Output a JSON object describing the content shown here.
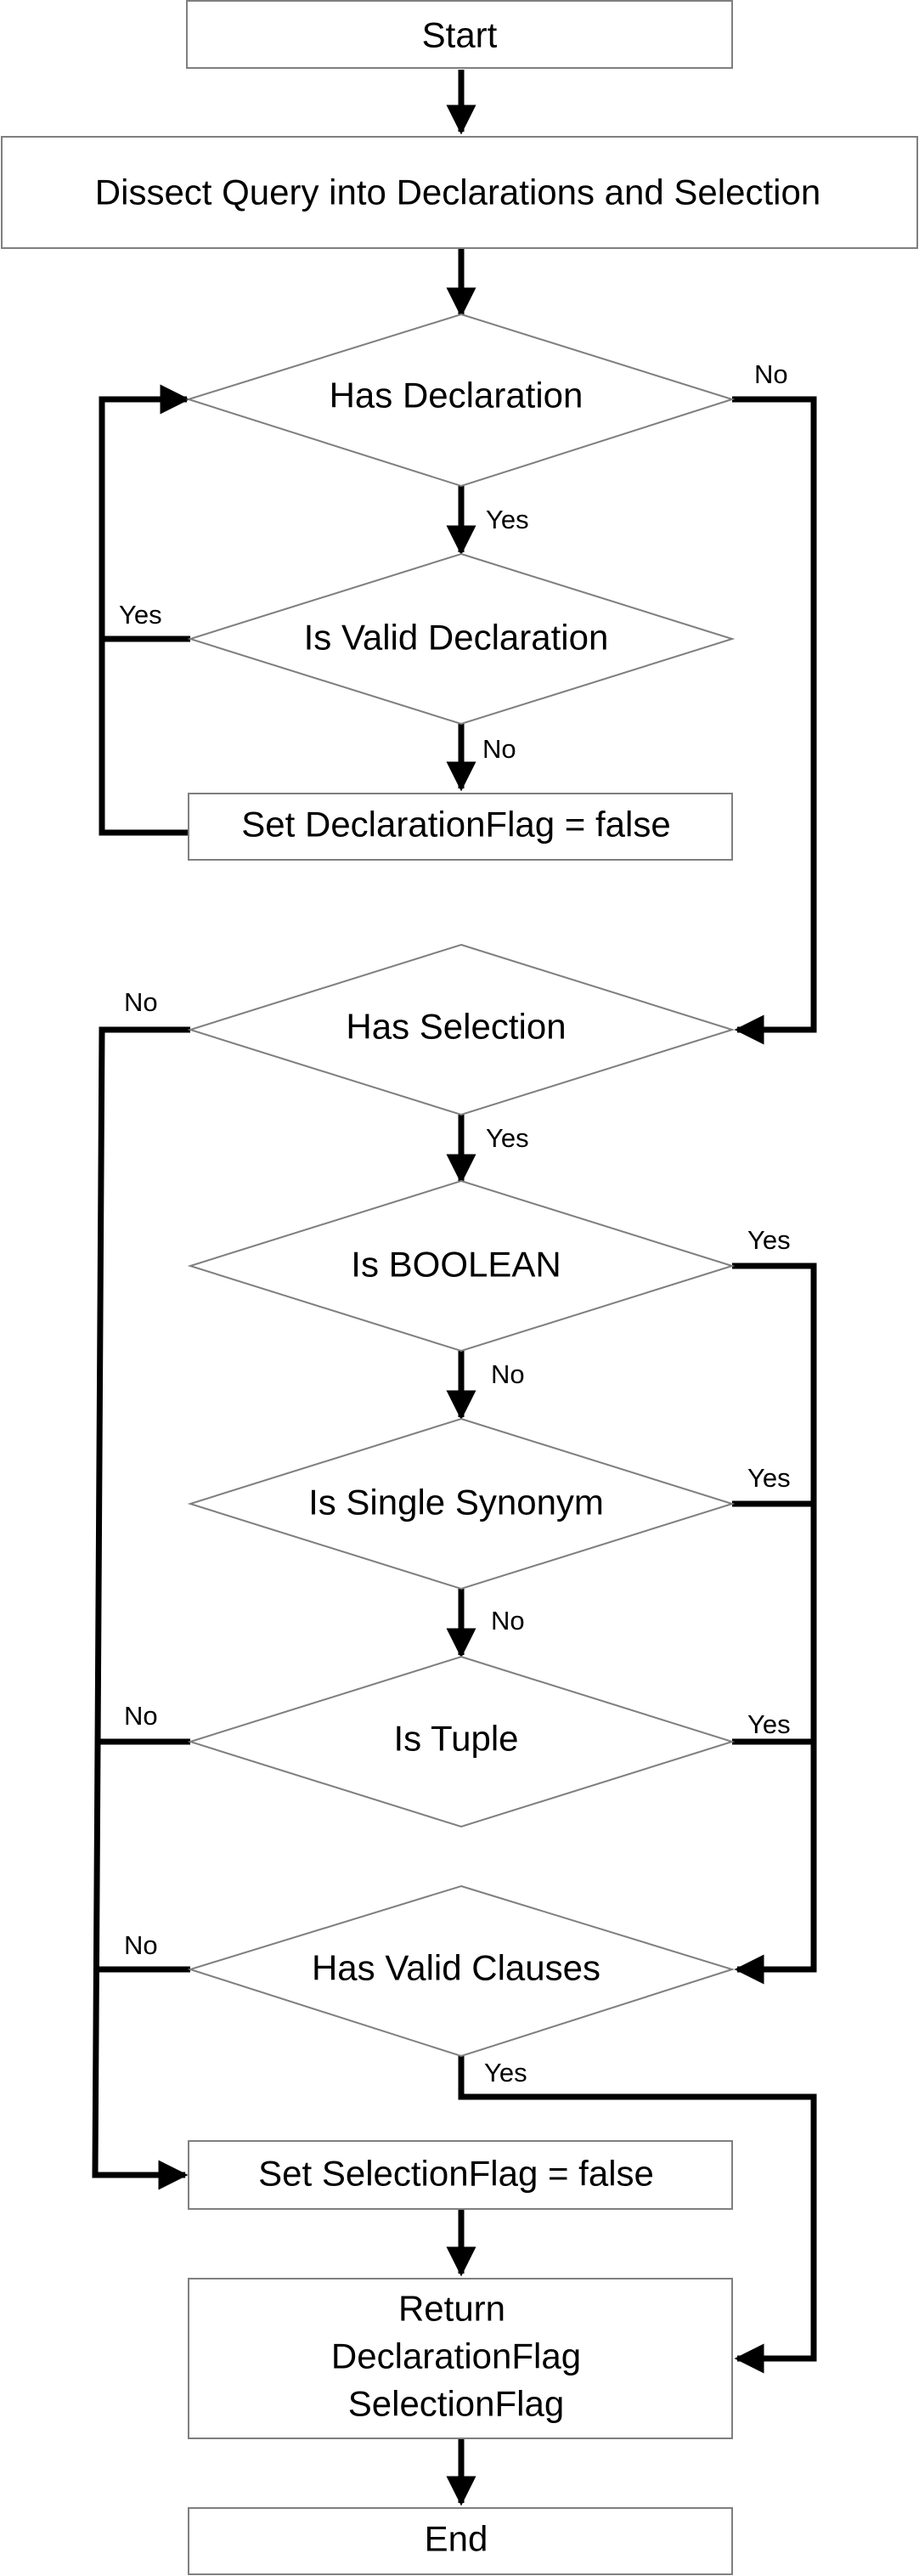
{
  "nodes": {
    "start": "Start",
    "dissect": "Dissect Query into Declarations and Selection",
    "has_declaration": "Has Declaration",
    "is_valid_declaration": "Is Valid Declaration",
    "set_declaration_flag": "Set DeclarationFlag = false",
    "has_selection": "Has Selection",
    "is_boolean": "Is BOOLEAN",
    "is_single_synonym": "Is Single Synonym",
    "is_tuple": "Is Tuple",
    "has_valid_clauses": "Has Valid Clauses",
    "set_selection_flag": "Set SelectionFlag = false",
    "return_line1": "Return",
    "return_line2": "DeclarationFlag",
    "return_line3": "SelectionFlag",
    "end": "End"
  },
  "edge_labels": {
    "has_declaration_no": "No",
    "has_declaration_yes": "Yes",
    "is_valid_declaration_yes": "Yes",
    "is_valid_declaration_no": "No",
    "has_selection_no": "No",
    "has_selection_yes": "Yes",
    "is_boolean_yes": "Yes",
    "is_boolean_no": "No",
    "is_single_synonym_yes": "Yes",
    "is_single_synonym_no": "No",
    "is_tuple_no": "No",
    "is_tuple_yes": "Yes",
    "has_valid_clauses_no": "No",
    "has_valid_clauses_yes": "Yes"
  },
  "colors": {
    "node_border": "#7f7f7f",
    "edge": "#000000",
    "background": "#ffffff"
  }
}
